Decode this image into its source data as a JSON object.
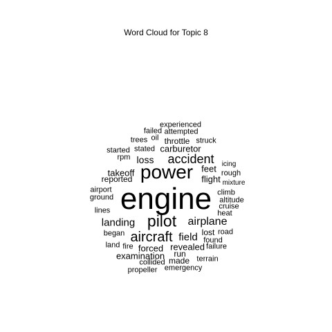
{
  "title": "Word Cloud for Topic 8",
  "words": [
    {
      "text": "engine",
      "weight": 100
    },
    {
      "text": "power",
      "weight": 56
    },
    {
      "text": "pilot",
      "weight": 48
    },
    {
      "text": "aircraft",
      "weight": 42
    },
    {
      "text": "accident",
      "weight": 38
    },
    {
      "text": "airplane",
      "weight": 34
    },
    {
      "text": "landing",
      "weight": 32
    },
    {
      "text": "field",
      "weight": 32
    },
    {
      "text": "loss",
      "weight": 28
    },
    {
      "text": "carburetor",
      "weight": 26
    },
    {
      "text": "revealed",
      "weight": 26
    },
    {
      "text": "forced",
      "weight": 26
    },
    {
      "text": "examination",
      "weight": 24
    },
    {
      "text": "takeoff",
      "weight": 24
    },
    {
      "text": "reported",
      "weight": 24
    },
    {
      "text": "feet",
      "weight": 24
    },
    {
      "text": "flight",
      "weight": 24
    },
    {
      "text": "throttle",
      "weight": 22
    },
    {
      "text": "stated",
      "weight": 22
    },
    {
      "text": "run",
      "weight": 22
    },
    {
      "text": "made",
      "weight": 22
    },
    {
      "text": "lost",
      "weight": 22
    },
    {
      "text": "experienced",
      "weight": 20
    },
    {
      "text": "attempted",
      "weight": 20
    },
    {
      "text": "failed",
      "weight": 20
    },
    {
      "text": "oil",
      "weight": 20
    },
    {
      "text": "trees",
      "weight": 20
    },
    {
      "text": "struck",
      "weight": 20
    },
    {
      "text": "started",
      "weight": 20
    },
    {
      "text": "rpm",
      "weight": 20
    },
    {
      "text": "icing",
      "weight": 20
    },
    {
      "text": "rough",
      "weight": 20
    },
    {
      "text": "mixture",
      "weight": 20
    },
    {
      "text": "airport",
      "weight": 20
    },
    {
      "text": "ground",
      "weight": 20
    },
    {
      "text": "climb",
      "weight": 20
    },
    {
      "text": "altitude",
      "weight": 20
    },
    {
      "text": "cruise",
      "weight": 20
    },
    {
      "text": "heat",
      "weight": 20
    },
    {
      "text": "lines",
      "weight": 20
    },
    {
      "text": "began",
      "weight": 20
    },
    {
      "text": "road",
      "weight": 20
    },
    {
      "text": "found",
      "weight": 20
    },
    {
      "text": "land",
      "weight": 20
    },
    {
      "text": "fire",
      "weight": 20
    },
    {
      "text": "failure",
      "weight": 20
    },
    {
      "text": "terrain",
      "weight": 20
    },
    {
      "text": "collided",
      "weight": 20
    },
    {
      "text": "emergency",
      "weight": 20
    },
    {
      "text": "propeller",
      "weight": 20
    }
  ]
}
